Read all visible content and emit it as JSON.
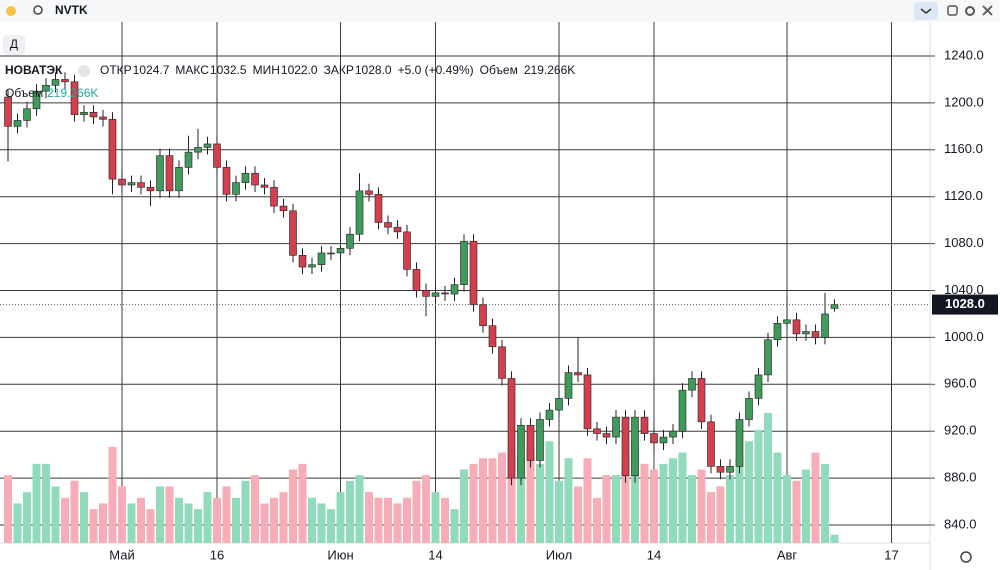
{
  "ui": {
    "symbol": "NVTK",
    "interval": "Д",
    "name": "НОВАТЭК",
    "legend": [
      "ОТКР",
      "1024.7",
      "МАКС",
      "1032.5",
      "МИН",
      "1022.0",
      "ЗАКР",
      "1028.0",
      "+5.0 (+0.49%)",
      "Объем",
      "219.266K"
    ],
    "volume_label": "Объем",
    "volume_value": "219.266K"
  },
  "chart_data": {
    "type": "candlestick",
    "ylim": [
      824.65,
      1269
    ],
    "grid": true,
    "yticks": [
      {
        "value": 840,
        "label": "840.0"
      },
      {
        "value": 880,
        "label": "880.0"
      },
      {
        "value": 920,
        "label": "920.0"
      },
      {
        "value": 960,
        "label": "960.0"
      },
      {
        "value": 1000,
        "label": "1000.0"
      },
      {
        "value": 1040,
        "label": "1040.0"
      },
      {
        "value": 1080,
        "label": "1080.0"
      },
      {
        "value": 1120,
        "label": "1120.0"
      },
      {
        "value": 1160,
        "label": "1160.0"
      },
      {
        "value": 1200,
        "label": "1200.0"
      },
      {
        "value": 1240,
        "label": "1240.0"
      }
    ],
    "categories": [
      null,
      null,
      null,
      null,
      null,
      null,
      null,
      null,
      null,
      null,
      null,
      null,
      "Май",
      null,
      null,
      null,
      null,
      null,
      null,
      null,
      null,
      null,
      "16",
      null,
      null,
      null,
      null,
      null,
      null,
      null,
      null,
      null,
      null,
      null,
      null,
      "Июн",
      null,
      null,
      null,
      null,
      null,
      null,
      null,
      null,
      null,
      "14",
      null,
      null,
      null,
      null,
      null,
      null,
      null,
      null,
      null,
      null,
      null,
      null,
      "Июл",
      null,
      null,
      null,
      null,
      null,
      null,
      null,
      null,
      null,
      "14",
      null,
      null,
      null,
      null,
      null,
      null,
      null,
      null,
      null,
      null,
      null,
      null,
      null,
      "Авг",
      null,
      null,
      null,
      null,
      null,
      null,
      null,
      null,
      null,
      null,
      "17"
    ],
    "open": [
      1205,
      1180,
      1185,
      1195,
      1210,
      1215,
      1220,
      1218,
      1190,
      1192,
      1188,
      1186,
      1135,
      1130,
      1132,
      1128,
      1125,
      1155,
      1125,
      1145,
      1158,
      1162,
      1165,
      1145,
      1122,
      1132,
      1140,
      1130,
      1128,
      1112,
      1108,
      1070,
      1060,
      1062,
      1072,
      1072,
      1076,
      1088,
      1125,
      1122,
      1098,
      1094,
      1090,
      1058,
      1040,
      1035,
      1038,
      1037,
      1045,
      1082,
      1028,
      1010,
      992,
      965,
      880,
      925,
      895,
      930,
      938,
      948,
      970,
      968,
      922,
      918,
      915,
      932,
      882,
      932,
      918,
      910,
      915,
      920,
      955,
      965,
      928,
      890,
      885,
      890,
      930,
      948,
      968,
      998,
      1012,
      1015,
      1003,
      1005,
      1000,
      1024.7,
      null,
      null,
      null,
      null,
      null,
      null
    ],
    "high": [
      1211,
      1191,
      1201,
      1216,
      1221,
      1226,
      1226,
      1224,
      1198,
      1198,
      1194,
      1192,
      1141,
      1138,
      1138,
      1134,
      1161,
      1161,
      1151,
      1172,
      1178,
      1171,
      1171,
      1151,
      1138,
      1146,
      1146,
      1136,
      1134,
      1118,
      1114,
      1076,
      1068,
      1078,
      1078,
      1082,
      1094,
      1140,
      1131,
      1128,
      1104,
      1100,
      1096,
      1064,
      1046,
      1044,
      1044,
      1051,
      1088,
      1088,
      1034,
      1016,
      998,
      971,
      931,
      931,
      936,
      944,
      954,
      976,
      1000,
      974,
      928,
      924,
      938,
      938,
      938,
      938,
      924,
      921,
      926,
      961,
      971,
      971,
      934,
      896,
      896,
      936,
      954,
      974,
      1004,
      1018,
      1035,
      1021,
      1011,
      1011,
      1038,
      1032.5,
      null,
      null,
      null,
      null,
      null,
      null
    ],
    "low": [
      1150,
      1174,
      1179,
      1189,
      1204,
      1209,
      1212,
      1184,
      1184,
      1182,
      1180,
      1122,
      1124,
      1124,
      1122,
      1112,
      1119,
      1119,
      1119,
      1139,
      1152,
      1156,
      1139,
      1116,
      1116,
      1126,
      1124,
      1122,
      1106,
      1102,
      1064,
      1054,
      1054,
      1056,
      1066,
      1066,
      1070,
      1082,
      1116,
      1092,
      1088,
      1084,
      1052,
      1034,
      1018,
      1029,
      1031,
      1031,
      1039,
      1022,
      1004,
      986,
      959,
      874,
      874,
      889,
      889,
      924,
      932,
      942,
      962,
      916,
      912,
      909,
      909,
      876,
      876,
      912,
      904,
      904,
      909,
      914,
      949,
      922,
      884,
      879,
      879,
      884,
      924,
      942,
      962,
      992,
      1006,
      997,
      997,
      994,
      994,
      1022,
      null,
      null,
      null,
      null,
      null,
      null
    ],
    "close": [
      1180,
      1185,
      1195,
      1210,
      1215,
      1220,
      1218,
      1190,
      1192,
      1188,
      1186,
      1135,
      1130,
      1132,
      1128,
      1125,
      1155,
      1125,
      1145,
      1158,
      1162,
      1165,
      1145,
      1122,
      1132,
      1140,
      1130,
      1128,
      1112,
      1108,
      1070,
      1060,
      1062,
      1072,
      1072,
      1076,
      1088,
      1125,
      1122,
      1098,
      1094,
      1090,
      1058,
      1040,
      1035,
      1038,
      1037,
      1045,
      1082,
      1028,
      1010,
      992,
      965,
      880,
      925,
      895,
      930,
      938,
      948,
      970,
      968,
      922,
      918,
      915,
      932,
      882,
      932,
      918,
      910,
      915,
      920,
      955,
      965,
      928,
      890,
      885,
      890,
      930,
      948,
      968,
      998,
      1012,
      1015,
      1003,
      1005,
      1000,
      1020,
      1028,
      null,
      null,
      null,
      null,
      null,
      null
    ],
    "volume": [
      1800,
      1050,
      1350,
      2100,
      2100,
      1500,
      1200,
      1650,
      1350,
      900,
      1050,
      2550,
      1500,
      1050,
      1200,
      900,
      1500,
      1500,
      1200,
      1050,
      900,
      1350,
      1200,
      1500,
      1200,
      1650,
      1800,
      1050,
      1200,
      1350,
      1950,
      2100,
      1200,
      1050,
      900,
      1350,
      1650,
      1800,
      1350,
      1200,
      1200,
      1050,
      1200,
      1650,
      1800,
      1350,
      1200,
      900,
      1950,
      2100,
      2250,
      2250,
      2400,
      2400,
      2250,
      2550,
      2100,
      2700,
      1650,
      2250,
      1500,
      2250,
      1200,
      1800,
      1800,
      2250,
      2700,
      2100,
      1950,
      2100,
      2250,
      2400,
      1800,
      1950,
      1350,
      1500,
      1800,
      2250,
      2700,
      3000,
      3450,
      2400,
      1800,
      1650,
      1950,
      2400,
      2100,
      219.266,
      null,
      null,
      null,
      null,
      null,
      null
    ],
    "up_color": "#3f9a5c",
    "down_color": "#d2404f",
    "up_volume_color": "#8fdbbb",
    "down_volume_color": "#f6adb7",
    "last_price": {
      "value": 1028,
      "label": "1028.0"
    }
  }
}
